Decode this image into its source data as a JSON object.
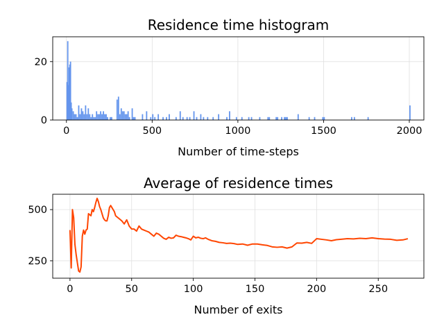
{
  "chart_data": [
    {
      "type": "bar",
      "title": "Residence time histogram",
      "xlabel": "Number of time-steps",
      "ylabel": "",
      "xlim": [
        -80,
        2085
      ],
      "ylim": [
        0,
        28.5
      ],
      "xticks": [
        0,
        500,
        1000,
        1500,
        2000
      ],
      "yticks": [
        0,
        20
      ],
      "grid": true,
      "color": "#6495ed",
      "bin_width": 8,
      "bars": [
        [
          0,
          13
        ],
        [
          4,
          27
        ],
        [
          8,
          12
        ],
        [
          12,
          18
        ],
        [
          16,
          19
        ],
        [
          20,
          20
        ],
        [
          24,
          6
        ],
        [
          28,
          4
        ],
        [
          36,
          3
        ],
        [
          44,
          2
        ],
        [
          52,
          2
        ],
        [
          60,
          1
        ],
        [
          68,
          5
        ],
        [
          76,
          2
        ],
        [
          84,
          4
        ],
        [
          92,
          3
        ],
        [
          100,
          2
        ],
        [
          108,
          5
        ],
        [
          116,
          2
        ],
        [
          124,
          4
        ],
        [
          132,
          2
        ],
        [
          140,
          1
        ],
        [
          148,
          2
        ],
        [
          156,
          1
        ],
        [
          164,
          1
        ],
        [
          172,
          3
        ],
        [
          180,
          2
        ],
        [
          188,
          2
        ],
        [
          196,
          3
        ],
        [
          204,
          2
        ],
        [
          212,
          3
        ],
        [
          220,
          2
        ],
        [
          228,
          2
        ],
        [
          236,
          1
        ],
        [
          252,
          1
        ],
        [
          260,
          1
        ],
        [
          292,
          7
        ],
        [
          300,
          8
        ],
        [
          308,
          2
        ],
        [
          316,
          4
        ],
        [
          324,
          3
        ],
        [
          332,
          3
        ],
        [
          340,
          2
        ],
        [
          348,
          2
        ],
        [
          356,
          3
        ],
        [
          364,
          1
        ],
        [
          380,
          4
        ],
        [
          388,
          1
        ],
        [
          396,
          1
        ],
        [
          440,
          2
        ],
        [
          464,
          3
        ],
        [
          488,
          1
        ],
        [
          500,
          2
        ],
        [
          512,
          1
        ],
        [
          532,
          2
        ],
        [
          560,
          1
        ],
        [
          580,
          1
        ],
        [
          596,
          2
        ],
        [
          636,
          1
        ],
        [
          660,
          3
        ],
        [
          676,
          1
        ],
        [
          700,
          1
        ],
        [
          716,
          1
        ],
        [
          740,
          3
        ],
        [
          756,
          1
        ],
        [
          780,
          2
        ],
        [
          796,
          1
        ],
        [
          820,
          1
        ],
        [
          852,
          1
        ],
        [
          884,
          2
        ],
        [
          932,
          1
        ],
        [
          948,
          3
        ],
        [
          988,
          1
        ],
        [
          1020,
          1
        ],
        [
          1060,
          1
        ],
        [
          1076,
          1
        ],
        [
          1124,
          1
        ],
        [
          1172,
          1
        ],
        [
          1180,
          1
        ],
        [
          1220,
          1
        ],
        [
          1228,
          1
        ],
        [
          1252,
          1
        ],
        [
          1268,
          1
        ],
        [
          1276,
          1
        ],
        [
          1284,
          1
        ],
        [
          1348,
          2
        ],
        [
          1412,
          1
        ],
        [
          1444,
          1
        ],
        [
          1492,
          1
        ],
        [
          1500,
          1
        ],
        [
          1660,
          1
        ],
        [
          1676,
          1
        ],
        [
          1756,
          1
        ],
        [
          2000,
          5
        ]
      ]
    },
    {
      "type": "line",
      "title": "Average of residence times",
      "xlabel": "Number of exits",
      "ylabel": "",
      "xlim": [
        -14,
        287
      ],
      "ylim": [
        165,
        575
      ],
      "xticks": [
        0,
        50,
        100,
        150,
        200,
        250
      ],
      "yticks": [
        250,
        500
      ],
      "grid": true,
      "color": "#ff4500",
      "series": [
        {
          "x": [
            0,
            1,
            2,
            3,
            4,
            5,
            6,
            7,
            8,
            9,
            10,
            11,
            12,
            13,
            14,
            15,
            16,
            17,
            18,
            19,
            20,
            21,
            22,
            23,
            24,
            25,
            26,
            27,
            28,
            29,
            30,
            31,
            32,
            33,
            34,
            35,
            36,
            37,
            38,
            40,
            42,
            44,
            46,
            48,
            50,
            52,
            54,
            56,
            58,
            60,
            62,
            64,
            66,
            68,
            70,
            72,
            74,
            76,
            78,
            80,
            82,
            84,
            86,
            88,
            90,
            92,
            94,
            96,
            98,
            100,
            102,
            104,
            106,
            108,
            110,
            112,
            115,
            118,
            121,
            124,
            127,
            130,
            133,
            136,
            140,
            144,
            148,
            152,
            156,
            160,
            164,
            168,
            172,
            176,
            180,
            184,
            188,
            192,
            196,
            200,
            204,
            208,
            212,
            216,
            220,
            225,
            230,
            235,
            240,
            245,
            250,
            255,
            260,
            265,
            270,
            274
          ],
          "y": [
            400,
            215,
            500,
            460,
            330,
            280,
            240,
            200,
            195,
            220,
            370,
            400,
            380,
            400,
            405,
            480,
            475,
            470,
            500,
            490,
            510,
            535,
            555,
            540,
            515,
            500,
            480,
            460,
            450,
            445,
            445,
            470,
            510,
            520,
            510,
            500,
            490,
            470,
            465,
            455,
            445,
            430,
            450,
            420,
            405,
            405,
            395,
            420,
            405,
            400,
            395,
            390,
            380,
            370,
            385,
            380,
            370,
            360,
            355,
            365,
            360,
            362,
            375,
            370,
            368,
            365,
            362,
            358,
            352,
            370,
            362,
            365,
            360,
            358,
            362,
            355,
            348,
            345,
            340,
            338,
            335,
            336,
            334,
            330,
            332,
            326,
            332,
            332,
            328,
            325,
            318,
            316,
            318,
            312,
            318,
            337,
            336,
            340,
            335,
            358,
            355,
            352,
            348,
            353,
            355,
            358,
            357,
            360,
            358,
            362,
            358,
            356,
            355,
            350,
            352,
            358
          ]
        }
      ]
    }
  ]
}
